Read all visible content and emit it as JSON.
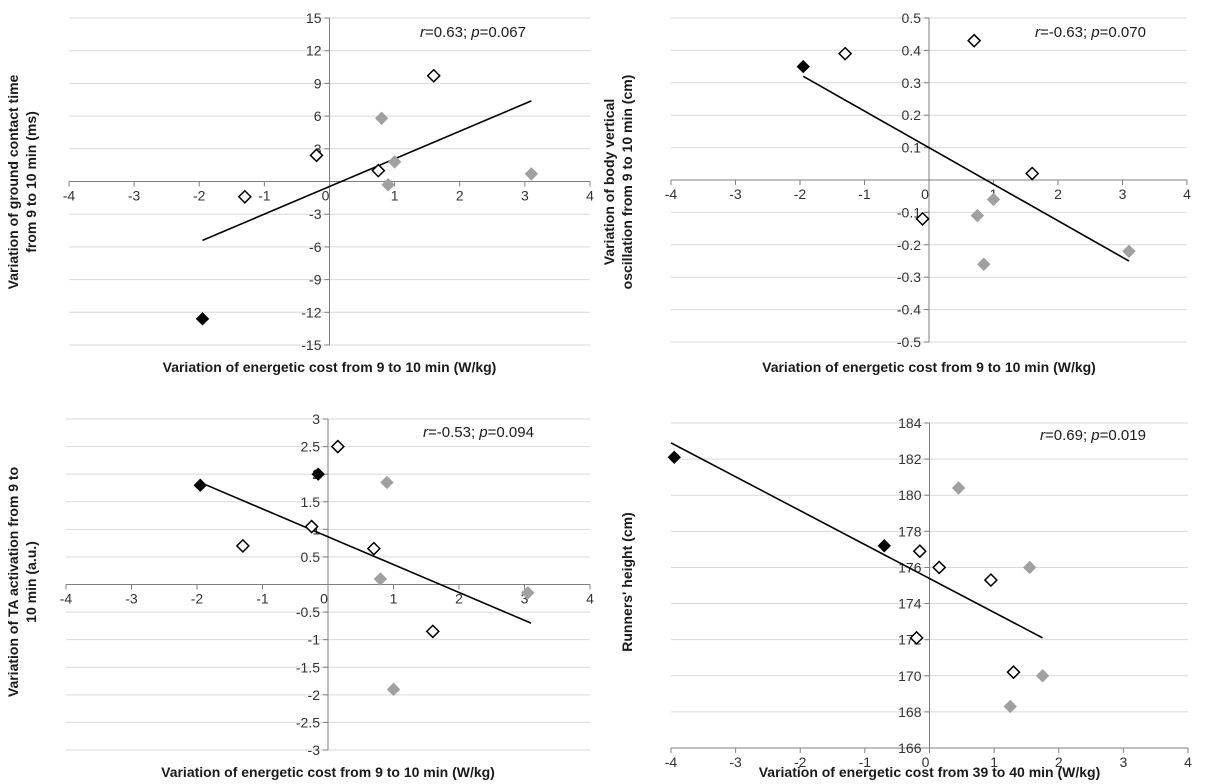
{
  "chart_data": [
    {
      "type": "scatter",
      "xlabel": "Variation of energetic cost from 9 to 10 min (W/kg)",
      "ylabel_lines": [
        "Variation of ground contact time",
        "from 9 to 10 min (ms)"
      ],
      "xlim": [
        -4,
        4
      ],
      "ylim": [
        -15,
        15
      ],
      "xticks": [
        -4,
        -3,
        -2,
        -1,
        0,
        1,
        2,
        3,
        4
      ],
      "yticks": [
        -15,
        -12,
        -9,
        -6,
        -3,
        0,
        3,
        6,
        9,
        12,
        15
      ],
      "grid": true,
      "annotation": {
        "r_label": "r",
        "r_text": "=0.63; ",
        "p_label": "p",
        "p_text": "=0.067"
      },
      "series": [
        {
          "marker": "filled-black",
          "color": "#000000",
          "points": [
            [
              -1.95,
              -12.6
            ]
          ]
        },
        {
          "marker": "open",
          "color": "#000000",
          "points": [
            [
              -1.3,
              -1.4
            ],
            [
              -0.2,
              2.4
            ],
            [
              0.75,
              1.0
            ],
            [
              1.6,
              9.7
            ]
          ]
        },
        {
          "marker": "filled-gray",
          "color": "#a0a0a0",
          "points": [
            [
              0.8,
              5.8
            ],
            [
              0.9,
              -0.3
            ],
            [
              1.0,
              1.8
            ],
            [
              3.1,
              0.7
            ]
          ]
        }
      ],
      "trendline": [
        [
          -1.95,
          -5.4
        ],
        [
          3.1,
          7.4
        ]
      ]
    },
    {
      "type": "scatter",
      "xlabel": "Variation of energetic cost from 9 to 10 min (W/kg)",
      "ylabel_lines": [
        "Variation of body vertical",
        "oscillation from 9 to 10 min (cm)"
      ],
      "xlim": [
        -4,
        4
      ],
      "ylim": [
        -0.5,
        0.5
      ],
      "xticks": [
        -4,
        -3,
        -2,
        -1,
        0,
        1,
        2,
        3,
        4
      ],
      "yticks": [
        -0.5,
        -0.4,
        -0.3,
        -0.2,
        -0.1,
        0,
        0.1,
        0.2,
        0.3,
        0.4,
        0.5
      ],
      "grid": true,
      "annotation": {
        "r_label": "r",
        "r_text": "=-0.63; ",
        "p_label": "p",
        "p_text": "=0.070"
      },
      "series": [
        {
          "marker": "filled-black",
          "color": "#000000",
          "points": [
            [
              -1.95,
              0.35
            ]
          ]
        },
        {
          "marker": "open",
          "color": "#000000",
          "points": [
            [
              -1.3,
              0.39
            ],
            [
              0.7,
              0.43
            ],
            [
              1.6,
              0.02
            ],
            [
              -0.1,
              -0.12
            ]
          ]
        },
        {
          "marker": "filled-gray",
          "color": "#a0a0a0",
          "points": [
            [
              0.75,
              -0.11
            ],
            [
              0.85,
              -0.26
            ],
            [
              1.0,
              -0.06
            ],
            [
              3.1,
              -0.22
            ]
          ]
        }
      ],
      "trendline": [
        [
          -1.95,
          0.32
        ],
        [
          3.1,
          -0.25
        ]
      ]
    },
    {
      "type": "scatter",
      "xlabel": "Variation of energetic cost from 9 to 10 min (W/kg)",
      "ylabel_lines": [
        "Variation of TA activation from 9 to",
        "10 min (a.u.)"
      ],
      "xlim": [
        -4,
        4
      ],
      "ylim": [
        -3,
        3
      ],
      "xticks": [
        -4,
        -3,
        -2,
        -1,
        0,
        1,
        2,
        3,
        4
      ],
      "yticks": [
        -3,
        -2.5,
        -2,
        -1.5,
        -1,
        -0.5,
        0,
        0.5,
        1,
        1.5,
        2,
        2.5,
        3
      ],
      "ytick_labels": [
        "-3",
        "-2.5",
        "-2",
        "-1.5",
        "-1",
        "-0.5",
        "0",
        "0.5",
        "1",
        "1.5",
        "2",
        "2.5",
        "3"
      ],
      "grid": true,
      "annotation": {
        "r_label": "r",
        "r_text": "=-0.53; ",
        "p_label": "p",
        "p_text": "=0.094"
      },
      "series": [
        {
          "marker": "filled-black",
          "color": "#000000",
          "points": [
            [
              -1.95,
              1.8
            ],
            [
              -0.15,
              2.0
            ]
          ]
        },
        {
          "marker": "open",
          "color": "#000000",
          "points": [
            [
              -1.3,
              0.7
            ],
            [
              0.15,
              2.5
            ],
            [
              -0.25,
              1.05
            ],
            [
              0.7,
              0.65
            ],
            [
              1.6,
              -0.85
            ]
          ]
        },
        {
          "marker": "filled-gray",
          "color": "#a0a0a0",
          "points": [
            [
              0.9,
              1.85
            ],
            [
              0.8,
              0.1
            ],
            [
              1.0,
              -1.9
            ],
            [
              3.05,
              -0.15
            ]
          ]
        }
      ],
      "trendline": [
        [
          -1.95,
          1.85
        ],
        [
          3.1,
          -0.7
        ]
      ]
    },
    {
      "type": "scatter",
      "xlabel": "Variation of energetic cost from 39 to 40 min (W/kg)",
      "ylabel_lines": [
        "Runners' height (cm)"
      ],
      "xlim": [
        -4,
        4
      ],
      "ylim": [
        166,
        184
      ],
      "xticks": [
        -4,
        -3,
        -2,
        -1,
        0,
        1,
        2,
        3,
        4
      ],
      "yticks": [
        166,
        168,
        170,
        172,
        174,
        176,
        178,
        180,
        182,
        184
      ],
      "grid": true,
      "annotation": {
        "r_label": "r",
        "r_text": "=0.69; ",
        "p_label": "p",
        "p_text": "=0.019"
      },
      "series": [
        {
          "marker": "filled-black",
          "color": "#000000",
          "points": [
            [
              -3.95,
              182.1
            ],
            [
              -0.7,
              177.2
            ]
          ]
        },
        {
          "marker": "open",
          "color": "#000000",
          "points": [
            [
              -0.15,
              176.9
            ],
            [
              0.15,
              176.0
            ],
            [
              0.95,
              175.3
            ],
            [
              -0.2,
              172.1
            ],
            [
              1.3,
              170.2
            ]
          ]
        },
        {
          "marker": "filled-gray",
          "color": "#a0a0a0",
          "points": [
            [
              0.45,
              180.4
            ],
            [
              1.55,
              176.0
            ],
            [
              1.25,
              168.3
            ],
            [
              1.75,
              170.0
            ]
          ]
        }
      ],
      "trendline": [
        [
          -4.0,
          182.9
        ],
        [
          1.75,
          172.1
        ]
      ]
    }
  ]
}
